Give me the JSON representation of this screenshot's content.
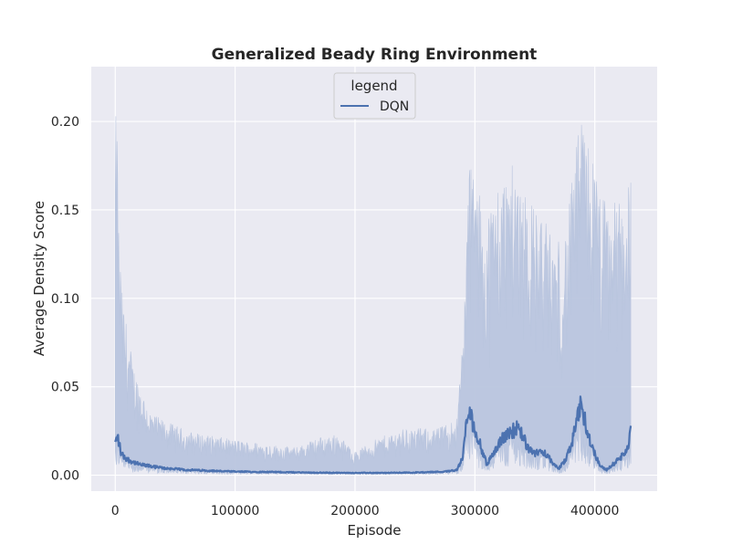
{
  "chart_data": {
    "type": "line",
    "title": "Generalized Beady Ring Environment",
    "xlabel": "Episode",
    "ylabel": "Average Density Score",
    "xlim": [
      -20000,
      452000
    ],
    "ylim": [
      -0.009,
      0.231
    ],
    "xticks": [
      0,
      100000,
      200000,
      300000,
      400000
    ],
    "xtick_labels": [
      "0",
      "100000",
      "200000",
      "300000",
      "400000"
    ],
    "yticks": [
      0.0,
      0.05,
      0.1,
      0.15,
      0.2
    ],
    "ytick_labels": [
      "0.00",
      "0.05",
      "0.10",
      "0.15",
      "0.20"
    ],
    "grid": true,
    "legend": {
      "title": "legend",
      "placement": "top-center",
      "entries": [
        "DQN"
      ]
    },
    "colors": {
      "line": "#4c72b0",
      "band": "#b9c5de",
      "background": "#eaeaf2",
      "grid": "#ffffff"
    },
    "series": [
      {
        "name": "DQN",
        "x": [
          0,
          2000,
          5000,
          10000,
          20000,
          40000,
          60000,
          80000,
          100000,
          130000,
          160000,
          190000,
          220000,
          250000,
          275000,
          285000,
          290000,
          292000,
          295000,
          300000,
          305000,
          310000,
          315000,
          320000,
          325000,
          330000,
          335000,
          340000,
          345000,
          350000,
          355000,
          360000,
          365000,
          370000,
          375000,
          380000,
          385000,
          388000,
          390000,
          392000,
          395000,
          400000,
          405000,
          410000,
          415000,
          420000,
          425000,
          428000,
          430000
        ],
        "y": [
          0.018,
          0.022,
          0.012,
          0.009,
          0.006,
          0.004,
          0.003,
          0.0025,
          0.002,
          0.0018,
          0.0015,
          0.0013,
          0.0013,
          0.0015,
          0.002,
          0.003,
          0.01,
          0.025,
          0.036,
          0.026,
          0.016,
          0.006,
          0.012,
          0.018,
          0.022,
          0.025,
          0.026,
          0.022,
          0.014,
          0.012,
          0.014,
          0.012,
          0.006,
          0.004,
          0.008,
          0.016,
          0.03,
          0.038,
          0.037,
          0.03,
          0.022,
          0.012,
          0.005,
          0.003,
          0.006,
          0.009,
          0.012,
          0.018,
          0.024
        ]
      }
    ]
  }
}
